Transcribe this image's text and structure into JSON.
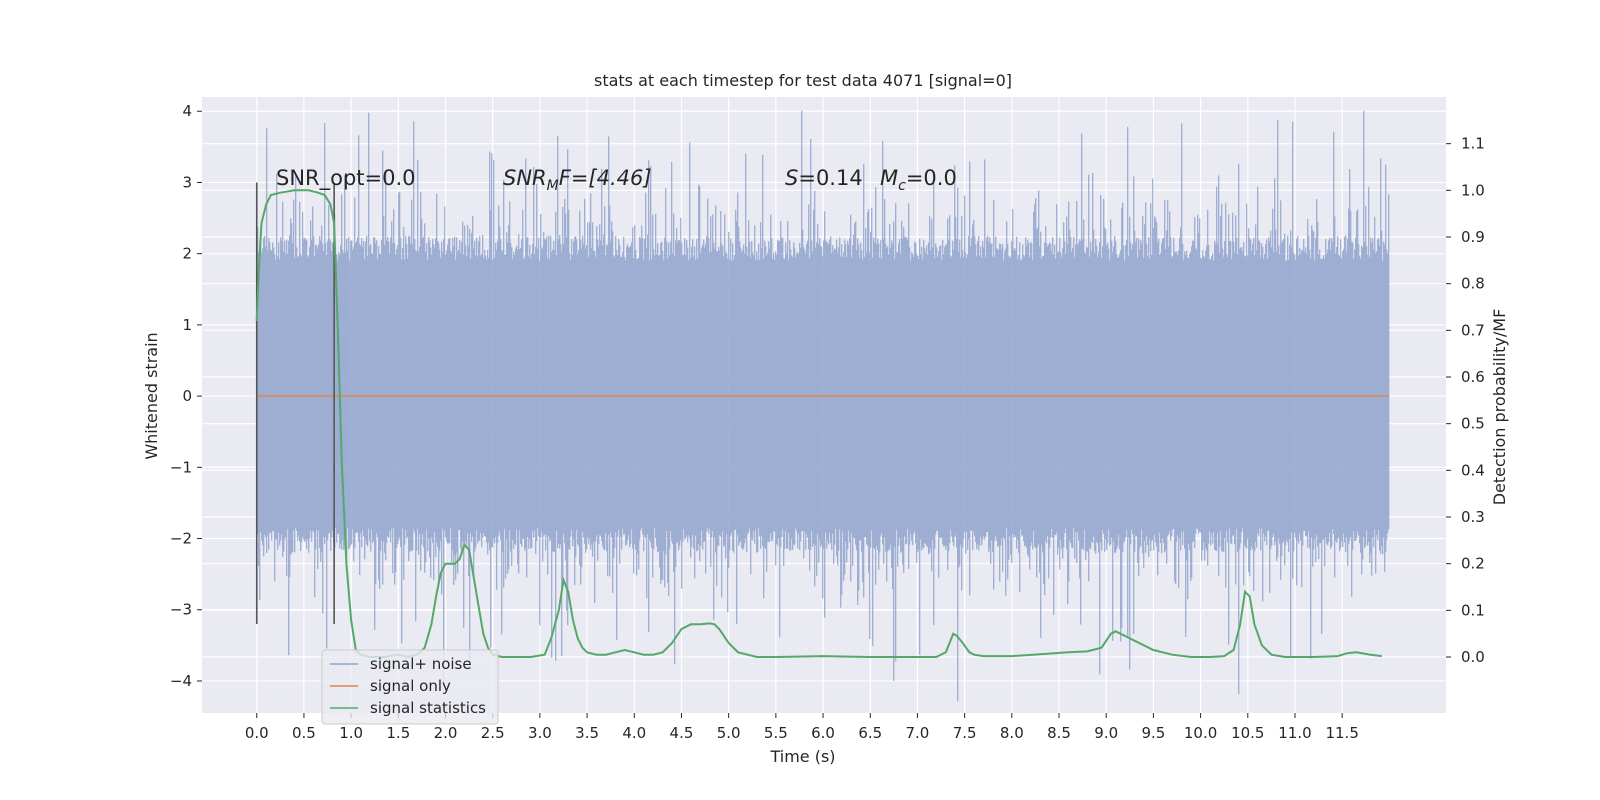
{
  "chart_data": {
    "type": "line",
    "title": "stats at each timestep for test data 4071 [signal=0]",
    "xlabel": "Time (s)",
    "ylabel": "Whitened strain",
    "y2label": "Detection probability/MF",
    "xlim": [
      -0.58,
      12.6
    ],
    "ylim": [
      -4.45,
      4.2
    ],
    "y2lim": [
      -0.12,
      1.2
    ],
    "xticks": [
      0.0,
      0.5,
      1.0,
      1.5,
      2.0,
      2.5,
      3.0,
      3.5,
      4.0,
      4.5,
      5.0,
      5.5,
      6.0,
      6.5,
      7.0,
      7.5,
      8.0,
      8.5,
      9.0,
      9.5,
      10.0,
      10.5,
      11.0,
      11.5
    ],
    "xtick_labels": [
      "0.0",
      "0.5",
      "1.0",
      "1.5",
      "2.0",
      "2.5",
      "3.0",
      "3.5",
      "4.0",
      "4.5",
      "5.0",
      "5.5",
      "6.0",
      "6.5",
      "7.0",
      "7.5",
      "8.0",
      "8.5",
      "9.0",
      "9.5",
      "10.0",
      "10.5",
      "11.0",
      "11.5"
    ],
    "yticks": [
      -4,
      -3,
      -2,
      -1,
      0,
      1,
      2,
      3,
      4
    ],
    "ytick_labels": [
      "−4",
      "−3",
      "−2",
      "−1",
      "0",
      "1",
      "2",
      "3",
      "4"
    ],
    "y2ticks": [
      0.0,
      0.1,
      0.2,
      0.3,
      0.4,
      0.5,
      0.6,
      0.7,
      0.8,
      0.9,
      1.0,
      1.1
    ],
    "y2tick_labels": [
      "0.0",
      "0.1",
      "0.2",
      "0.3",
      "0.4",
      "0.5",
      "0.6",
      "0.7",
      "0.8",
      "0.9",
      "1.0",
      "1.1"
    ],
    "grid": true,
    "legend_position": "lower-left",
    "colors": {
      "background": "#eaeaf2",
      "grid": "#ffffff",
      "noise": "#8fa3cc",
      "signal": "#dd8452",
      "stats": "#55a868",
      "marker": "#555555"
    },
    "annotations": {
      "snr_opt": "SNR_opt=0.0",
      "snr_mf_main": "SNR",
      "snr_mf_sub": "M",
      "snr_mf_rest": "F=[4.46]",
      "s_label": "S",
      "s_value": "=0.14",
      "mc_label": "M",
      "mc_sub": "c",
      "mc_value": "=0.0"
    },
    "vertical_markers": [
      0.0,
      0.82
    ],
    "series": [
      {
        "name": "signal+ noise",
        "axis": "left",
        "kind": "noise band",
        "x_range": [
          0.0,
          12.0
        ],
        "core_band": [
          -1.95,
          2.0
        ],
        "spike_max": 3.85,
        "spike_min": -4.1
      },
      {
        "name": "signal only",
        "axis": "left",
        "x": [
          0.0,
          12.0
        ],
        "y": [
          0.0,
          0.0
        ]
      },
      {
        "name": "signal statistics",
        "axis": "right",
        "x": [
          0.0,
          0.02,
          0.05,
          0.1,
          0.15,
          0.25,
          0.4,
          0.55,
          0.65,
          0.72,
          0.78,
          0.82,
          0.86,
          0.9,
          0.95,
          1.0,
          1.05,
          1.1,
          1.2,
          1.35,
          1.5,
          1.6,
          1.7,
          1.78,
          1.85,
          1.9,
          1.95,
          2.0,
          2.05,
          2.1,
          2.15,
          2.2,
          2.25,
          2.3,
          2.35,
          2.4,
          2.45,
          2.5,
          2.6,
          2.7,
          2.9,
          3.05,
          3.12,
          3.2,
          3.25,
          3.3,
          3.35,
          3.4,
          3.45,
          3.5,
          3.6,
          3.7,
          3.8,
          3.9,
          4.0,
          4.1,
          4.2,
          4.3,
          4.4,
          4.5,
          4.55,
          4.6,
          4.7,
          4.8,
          4.85,
          4.9,
          5.0,
          5.1,
          5.2,
          5.3,
          5.5,
          6.0,
          6.5,
          7.0,
          7.2,
          7.3,
          7.38,
          7.42,
          7.48,
          7.55,
          7.6,
          7.7,
          8.0,
          8.3,
          8.6,
          8.8,
          8.95,
          9.05,
          9.1,
          9.2,
          9.3,
          9.5,
          9.7,
          9.9,
          10.1,
          10.25,
          10.35,
          10.42,
          10.47,
          10.52,
          10.57,
          10.65,
          10.75,
          10.9,
          11.2,
          11.45,
          11.55,
          11.65,
          11.8,
          11.92
        ],
        "y": [
          0.72,
          0.82,
          0.93,
          0.97,
          0.99,
          0.995,
          1.0,
          1.0,
          0.995,
          0.99,
          0.97,
          0.93,
          0.7,
          0.42,
          0.2,
          0.08,
          0.015,
          0.005,
          0.0,
          0.0,
          0.005,
          0.0,
          0.005,
          0.02,
          0.07,
          0.13,
          0.18,
          0.2,
          0.2,
          0.2,
          0.21,
          0.24,
          0.23,
          0.17,
          0.11,
          0.05,
          0.02,
          0.005,
          0.0,
          0.0,
          0.0,
          0.005,
          0.04,
          0.1,
          0.165,
          0.14,
          0.08,
          0.04,
          0.02,
          0.01,
          0.005,
          0.005,
          0.01,
          0.015,
          0.01,
          0.005,
          0.005,
          0.01,
          0.03,
          0.06,
          0.065,
          0.07,
          0.07,
          0.072,
          0.07,
          0.06,
          0.03,
          0.01,
          0.005,
          0.0,
          0.0,
          0.002,
          0.0,
          0.0,
          0.0,
          0.01,
          0.05,
          0.045,
          0.03,
          0.01,
          0.005,
          0.002,
          0.002,
          0.006,
          0.01,
          0.012,
          0.02,
          0.05,
          0.055,
          0.045,
          0.035,
          0.015,
          0.005,
          0.0,
          0.0,
          0.002,
          0.015,
          0.07,
          0.14,
          0.13,
          0.07,
          0.025,
          0.005,
          0.0,
          0.0,
          0.002,
          0.008,
          0.01,
          0.005,
          0.002
        ]
      }
    ]
  }
}
